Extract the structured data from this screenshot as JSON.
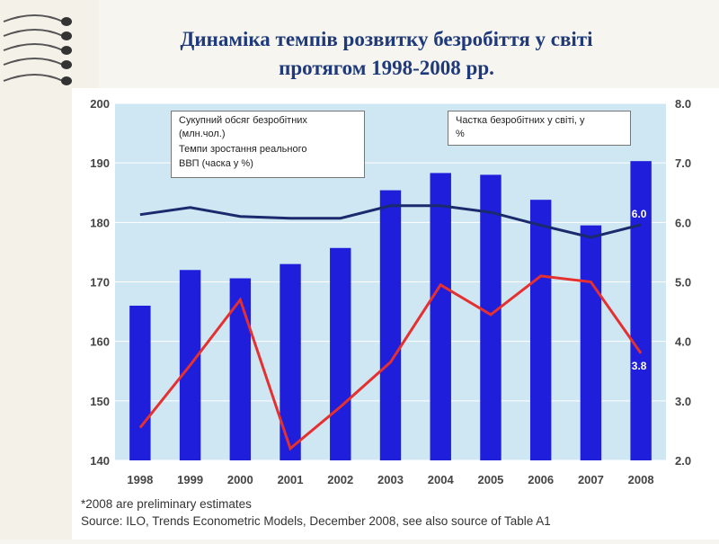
{
  "slide": {
    "title_line1": "Динаміка темпів розвитку безробіття у світі",
    "title_line2": "протягом 1998-2008 рр."
  },
  "legend": {
    "bars_label_line1": "Сукупний обсяг безробітних",
    "bars_label_line2": "(млн.чол.)",
    "gdp_label_line1": "Темпи  зростання реального",
    "gdp_label_line2": "ВВП (часка у %)",
    "share_label_line1": "Частка безробітних у світі, у",
    "share_label_line2": "%"
  },
  "footnote": {
    "line1": "*2008 are preliminary estimates",
    "line2": "Source: ILO, Trends Econometric Models, December 2008, see also source of Table A1"
  },
  "colors": {
    "plot_bg": "#cfe6f3",
    "bar": "#1e1edb",
    "gdp_line": "#e53030",
    "share_line": "#1a2a6c",
    "grid": "#ffffff"
  },
  "chart_data": {
    "type": "bar",
    "categories": [
      "1998",
      "1999",
      "2000",
      "2001",
      "2002",
      "2003",
      "2004",
      "2005",
      "2006",
      "2007",
      "2008"
    ],
    "left_axis": {
      "ylim": [
        140,
        200
      ],
      "ticks": [
        "140",
        "150",
        "160",
        "170",
        "180",
        "190",
        "200"
      ]
    },
    "right_axis": {
      "ylim": [
        2.0,
        8.0
      ],
      "ticks": [
        "2.0",
        "3.0",
        "4.0",
        "5.0",
        "6.0",
        "7.0",
        "8.0"
      ]
    },
    "series": [
      {
        "kind": "bar",
        "axis": "left",
        "values": [
          166,
          172,
          170.6,
          173,
          175.7,
          185.4,
          188.3,
          188,
          183.8,
          179.5,
          190.3
        ]
      },
      {
        "kind": "line",
        "axis": "right",
        "values": [
          6.13,
          6.25,
          6.1,
          6.07,
          6.07,
          6.28,
          6.28,
          6.17,
          5.95,
          5.75,
          5.96
        ]
      },
      {
        "kind": "line",
        "axis": "right",
        "values": [
          2.55,
          3.6,
          4.7,
          2.2,
          2.9,
          3.65,
          4.95,
          4.45,
          5.1,
          5.0,
          3.8
        ]
      }
    ],
    "data_labels": {
      "share_last": "6.0",
      "gdp_last": "3.8"
    }
  }
}
